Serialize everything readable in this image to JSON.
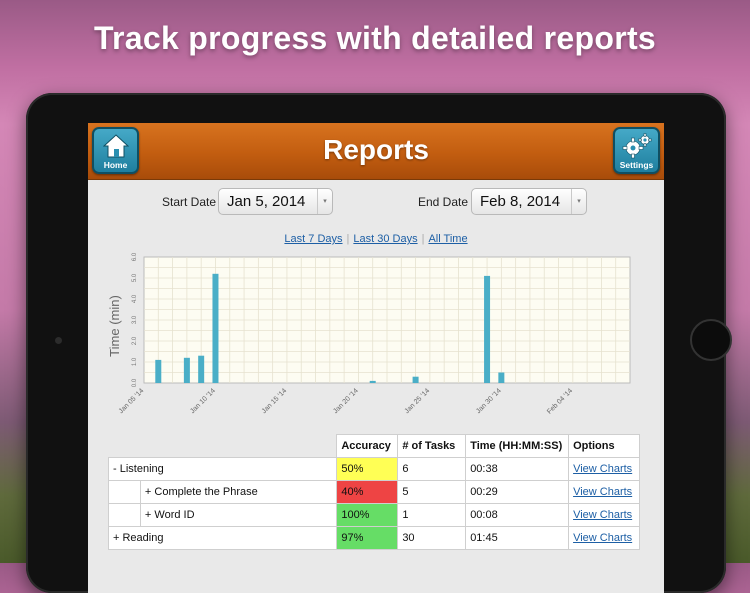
{
  "banner": {
    "title": "Track progress with detailed reports"
  },
  "topbar": {
    "title": "Reports",
    "home_label": "Home",
    "settings_label": "Settings",
    "color": "#c25d10",
    "button_color": "#2a8fb0"
  },
  "filters": {
    "start_label": "Start Date",
    "start_value": "Jan 5, 2014",
    "end_label": "End Date",
    "end_value": "Feb 8, 2014"
  },
  "quick_ranges": [
    "Last 7 Days",
    "Last 30 Days",
    "All Time"
  ],
  "chart_data": {
    "type": "bar",
    "ylabel": "Time (min)",
    "xlabel": "",
    "ylim": [
      0,
      6.0
    ],
    "yticks": [
      "0.0",
      "1.0",
      "2.0",
      "3.0",
      "4.0",
      "5.0",
      "6.0"
    ],
    "xticks": [
      "Jan 05 '14",
      "Jan 10 '14",
      "Jan 15 '14",
      "Jan 20 '14",
      "Jan 25 '14",
      "Jan 30 '14",
      "Feb 04 '14"
    ],
    "x_start": "Jan 05 '14",
    "x_end": "Feb 08 '14",
    "grid": true,
    "bar_color": "#4aaec7",
    "bars": [
      {
        "date": "Jan 06 '14",
        "value": 1.1
      },
      {
        "date": "Jan 08 '14",
        "value": 1.2
      },
      {
        "date": "Jan 09 '14",
        "value": 1.3
      },
      {
        "date": "Jan 10 '14",
        "value": 5.2
      },
      {
        "date": "Jan 21 '14",
        "value": 0.1
      },
      {
        "date": "Jan 24 '14",
        "value": 0.3
      },
      {
        "date": "Jan 29 '14",
        "value": 5.1
      },
      {
        "date": "Jan 30 '14",
        "value": 0.5
      }
    ]
  },
  "table": {
    "headers": [
      "Accuracy",
      "# of Tasks",
      "Time (HH:MM:SS)",
      "Options"
    ],
    "rows": [
      {
        "label": "-  Listening",
        "accuracy": "50%",
        "tasks": "6",
        "time": "00:38",
        "option": "View Charts",
        "color": "#ffff55",
        "indent": false
      },
      {
        "label": "+  Complete the Phrase",
        "accuracy": "40%",
        "tasks": "5",
        "time": "00:29",
        "option": "View Charts",
        "color": "#ee4444",
        "indent": true
      },
      {
        "label": "+  Word ID",
        "accuracy": "100%",
        "tasks": "1",
        "time": "00:08",
        "option": "View Charts",
        "color": "#66dd66",
        "indent": true
      },
      {
        "label": "+  Reading",
        "accuracy": "97%",
        "tasks": "30",
        "time": "01:45",
        "option": "View Charts",
        "color": "#66dd66",
        "indent": false
      }
    ]
  }
}
